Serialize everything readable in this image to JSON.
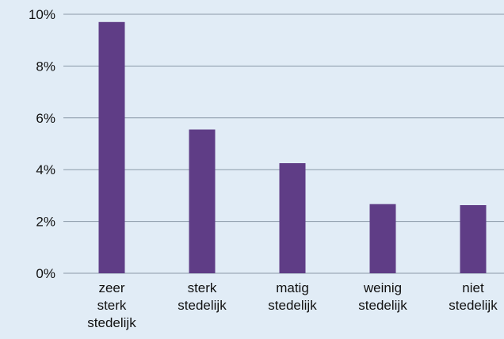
{
  "chart_data": {
    "type": "bar",
    "title": "",
    "xlabel": "",
    "ylabel": "",
    "categories": [
      [
        "zeer",
        "sterk",
        "stedelijk"
      ],
      [
        "sterk",
        "stedelijk"
      ],
      [
        "matig",
        "stedelijk"
      ],
      [
        "weinig",
        "stedelijk"
      ],
      [
        "niet",
        "stedelijk"
      ]
    ],
    "values": [
      9.7,
      5.55,
      4.25,
      2.67,
      2.63
    ],
    "ylim": [
      0,
      10
    ],
    "yticks": [
      0,
      2,
      4,
      6,
      8,
      10
    ],
    "ytick_labels": [
      "0%",
      "2%",
      "4%",
      "6%",
      "8%",
      "10%"
    ],
    "grid": true,
    "legend": false,
    "colors": {
      "bar": "#5f3d86",
      "grid": "#8a99a8",
      "background": "#e1ecf6",
      "text": "#111111"
    }
  }
}
